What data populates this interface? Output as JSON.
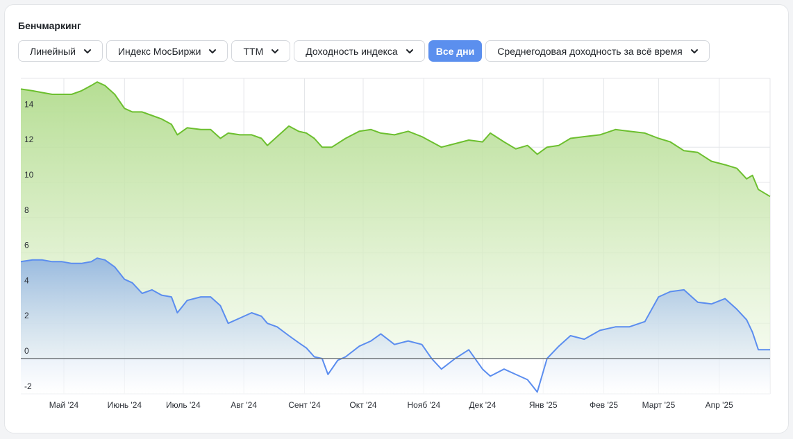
{
  "title": "Бенчмаркинг",
  "controls": {
    "scale": "Линейный",
    "index": "Индекс МосБиржи",
    "period": "TTM",
    "metric": "Доходность индекса",
    "all_days": "Все дни",
    "mode": "Среднегодовая доходность за всё время"
  },
  "colors": {
    "green_line": "#6cbf2e",
    "blue_line": "#5b8def",
    "zero_line": "#6f7478",
    "active_button": "#5b8fee"
  },
  "chart_data": {
    "type": "area",
    "x_labels": [
      "Май '24",
      "Июнь '24",
      "Июль '24",
      "Авг '24",
      "Сент '24",
      "Окт '24",
      "Нояб '24",
      "Дек '24",
      "Янв '25",
      "Фев '25",
      "Март '25",
      "Апр '25"
    ],
    "y_ticks": [
      "14",
      "12",
      "10",
      "8",
      "6",
      "4",
      "2",
      "0",
      "-2"
    ],
    "ylim": [
      -2,
      15.5
    ],
    "grid": true,
    "series": [
      {
        "color": "#6cbf2e",
        "points": [
          [
            "2024-04-10",
            15.3
          ],
          [
            "2024-04-15",
            15.2
          ],
          [
            "2024-04-20",
            15.1
          ],
          [
            "2024-04-25",
            15.0
          ],
          [
            "2024-04-30",
            15.0
          ],
          [
            "2024-05-05",
            15.0
          ],
          [
            "2024-05-10",
            15.2
          ],
          [
            "2024-05-15",
            15.5
          ],
          [
            "2024-05-18",
            15.7
          ],
          [
            "2024-05-22",
            15.5
          ],
          [
            "2024-05-27",
            15.0
          ],
          [
            "2024-06-01",
            14.2
          ],
          [
            "2024-06-05",
            14.0
          ],
          [
            "2024-06-10",
            14.0
          ],
          [
            "2024-06-15",
            13.8
          ],
          [
            "2024-06-20",
            13.6
          ],
          [
            "2024-06-25",
            13.3
          ],
          [
            "2024-06-28",
            12.7
          ],
          [
            "2024-07-03",
            13.1
          ],
          [
            "2024-07-10",
            13.0
          ],
          [
            "2024-07-15",
            13.0
          ],
          [
            "2024-07-20",
            12.5
          ],
          [
            "2024-07-24",
            12.8
          ],
          [
            "2024-07-30",
            12.7
          ],
          [
            "2024-08-05",
            12.7
          ],
          [
            "2024-08-10",
            12.5
          ],
          [
            "2024-08-13",
            12.1
          ],
          [
            "2024-08-18",
            12.6
          ],
          [
            "2024-08-24",
            13.2
          ],
          [
            "2024-08-29",
            12.9
          ],
          [
            "2024-09-02",
            12.8
          ],
          [
            "2024-09-06",
            12.5
          ],
          [
            "2024-09-10",
            12.0
          ],
          [
            "2024-09-15",
            12.0
          ],
          [
            "2024-09-22",
            12.5
          ],
          [
            "2024-09-29",
            12.9
          ],
          [
            "2024-10-05",
            13.0
          ],
          [
            "2024-10-10",
            12.8
          ],
          [
            "2024-10-17",
            12.7
          ],
          [
            "2024-10-24",
            12.9
          ],
          [
            "2024-10-31",
            12.6
          ],
          [
            "2024-11-05",
            12.3
          ],
          [
            "2024-11-10",
            12.0
          ],
          [
            "2024-11-17",
            12.2
          ],
          [
            "2024-11-24",
            12.4
          ],
          [
            "2024-12-01",
            12.3
          ],
          [
            "2024-12-05",
            12.8
          ],
          [
            "2024-12-12",
            12.3
          ],
          [
            "2024-12-18",
            11.9
          ],
          [
            "2024-12-24",
            12.1
          ],
          [
            "2024-12-29",
            11.6
          ],
          [
            "2025-01-03",
            12.0
          ],
          [
            "2025-01-09",
            12.1
          ],
          [
            "2025-01-15",
            12.5
          ],
          [
            "2025-01-22",
            12.6
          ],
          [
            "2025-01-30",
            12.7
          ],
          [
            "2025-02-07",
            13.0
          ],
          [
            "2025-02-14",
            12.9
          ],
          [
            "2025-02-22",
            12.8
          ],
          [
            "2025-03-01",
            12.5
          ],
          [
            "2025-03-07",
            12.3
          ],
          [
            "2025-03-14",
            11.8
          ],
          [
            "2025-03-21",
            11.7
          ],
          [
            "2025-03-28",
            11.2
          ],
          [
            "2025-04-04",
            11.0
          ],
          [
            "2025-04-10",
            10.8
          ],
          [
            "2025-04-15",
            10.2
          ],
          [
            "2025-04-18",
            10.4
          ],
          [
            "2025-04-21",
            9.6
          ],
          [
            "2025-04-26",
            9.2
          ]
        ]
      },
      {
        "color": "#5b8def",
        "points": [
          [
            "2024-04-10",
            5.5
          ],
          [
            "2024-04-15",
            5.6
          ],
          [
            "2024-04-20",
            5.6
          ],
          [
            "2024-04-25",
            5.5
          ],
          [
            "2024-04-30",
            5.5
          ],
          [
            "2024-05-05",
            5.4
          ],
          [
            "2024-05-10",
            5.4
          ],
          [
            "2024-05-15",
            5.5
          ],
          [
            "2024-05-18",
            5.7
          ],
          [
            "2024-05-22",
            5.6
          ],
          [
            "2024-05-27",
            5.2
          ],
          [
            "2024-06-01",
            4.5
          ],
          [
            "2024-06-05",
            4.3
          ],
          [
            "2024-06-10",
            3.7
          ],
          [
            "2024-06-15",
            3.9
          ],
          [
            "2024-06-20",
            3.6
          ],
          [
            "2024-06-25",
            3.5
          ],
          [
            "2024-06-28",
            2.6
          ],
          [
            "2024-07-03",
            3.3
          ],
          [
            "2024-07-10",
            3.5
          ],
          [
            "2024-07-15",
            3.5
          ],
          [
            "2024-07-20",
            3.0
          ],
          [
            "2024-07-24",
            2.0
          ],
          [
            "2024-07-30",
            2.3
          ],
          [
            "2024-08-05",
            2.6
          ],
          [
            "2024-08-10",
            2.4
          ],
          [
            "2024-08-13",
            2.0
          ],
          [
            "2024-08-18",
            1.8
          ],
          [
            "2024-08-24",
            1.3
          ],
          [
            "2024-08-29",
            0.9
          ],
          [
            "2024-09-02",
            0.6
          ],
          [
            "2024-09-06",
            0.1
          ],
          [
            "2024-09-10",
            0.0
          ],
          [
            "2024-09-13",
            -0.9
          ],
          [
            "2024-09-18",
            -0.1
          ],
          [
            "2024-09-22",
            0.1
          ],
          [
            "2024-09-29",
            0.7
          ],
          [
            "2024-10-05",
            1.0
          ],
          [
            "2024-10-10",
            1.4
          ],
          [
            "2024-10-17",
            0.8
          ],
          [
            "2024-10-24",
            1.0
          ],
          [
            "2024-10-31",
            0.8
          ],
          [
            "2024-11-05",
            0.0
          ],
          [
            "2024-11-10",
            -0.6
          ],
          [
            "2024-11-17",
            0.0
          ],
          [
            "2024-11-24",
            0.5
          ],
          [
            "2024-12-01",
            -0.6
          ],
          [
            "2024-12-05",
            -1.0
          ],
          [
            "2024-12-12",
            -0.6
          ],
          [
            "2024-12-18",
            -0.9
          ],
          [
            "2024-12-24",
            -1.2
          ],
          [
            "2024-12-29",
            -1.9
          ],
          [
            "2025-01-03",
            0.0
          ],
          [
            "2025-01-09",
            0.7
          ],
          [
            "2025-01-15",
            1.3
          ],
          [
            "2025-01-22",
            1.1
          ],
          [
            "2025-01-30",
            1.6
          ],
          [
            "2025-02-07",
            1.8
          ],
          [
            "2025-02-14",
            1.8
          ],
          [
            "2025-02-22",
            2.1
          ],
          [
            "2025-03-01",
            3.5
          ],
          [
            "2025-03-07",
            3.8
          ],
          [
            "2025-03-14",
            3.9
          ],
          [
            "2025-03-21",
            3.2
          ],
          [
            "2025-03-28",
            3.1
          ],
          [
            "2025-04-04",
            3.4
          ],
          [
            "2025-04-10",
            2.8
          ],
          [
            "2025-04-15",
            2.2
          ],
          [
            "2025-04-18",
            1.5
          ],
          [
            "2025-04-21",
            0.5
          ],
          [
            "2025-04-26",
            0.5
          ]
        ]
      }
    ]
  }
}
